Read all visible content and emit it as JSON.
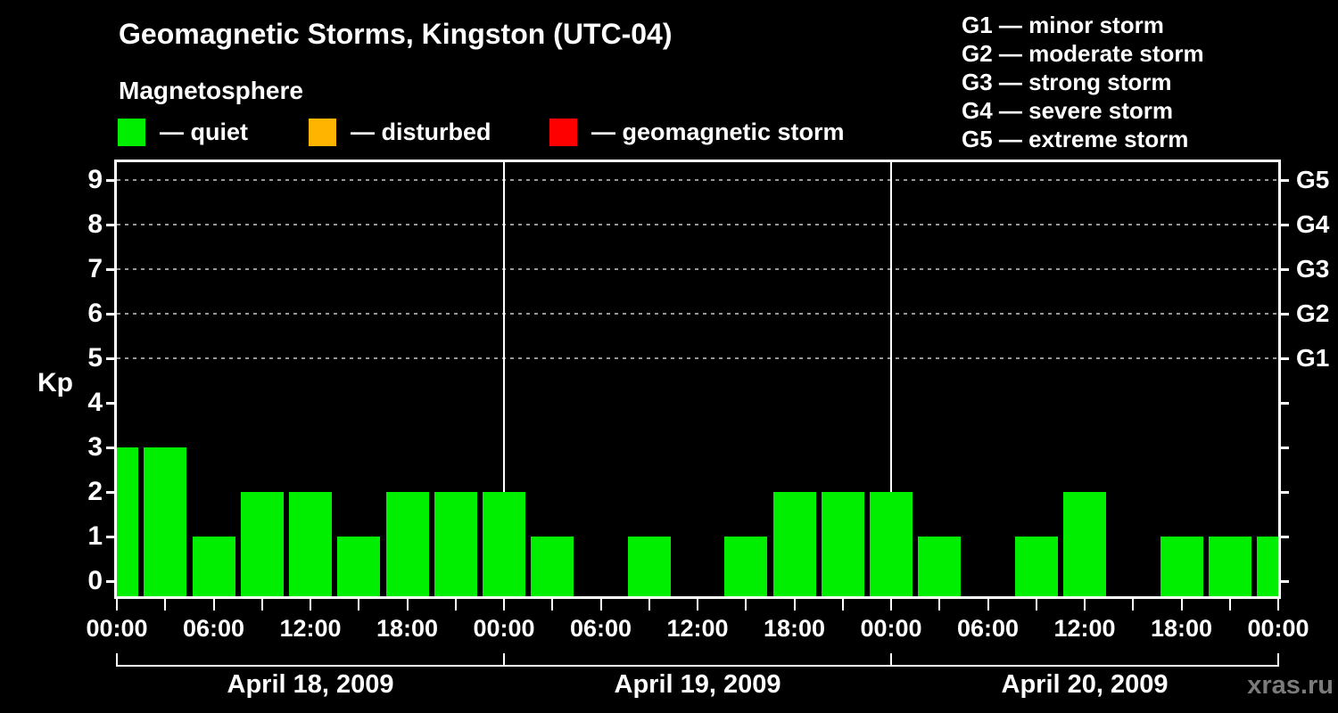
{
  "header": {
    "title": "Geomagnetic Storms, Kingston (UTC-04)",
    "subtitle": "Magnetosphere"
  },
  "legend": {
    "items": [
      {
        "name": "quiet",
        "swatch_color": "#00ee00",
        "label": "— quiet"
      },
      {
        "name": "disturbed",
        "swatch_color": "#ffb400",
        "label": "— disturbed"
      },
      {
        "name": "geomagnetic-storm",
        "swatch_color": "#ff0000",
        "label": "— geomagnetic storm"
      }
    ]
  },
  "g_legend": {
    "items": [
      "G1 — minor storm",
      "G2 — moderate storm",
      "G3 — strong storm",
      "G4 — severe storm",
      "G5 — extreme storm"
    ]
  },
  "chart_data": {
    "type": "bar",
    "title": "Geomagnetic Storms, Kingston (UTC-04)",
    "ylabel": "Kp",
    "ylim": [
      -0.35,
      9.4
    ],
    "y_ticks": [
      0,
      1,
      2,
      3,
      4,
      5,
      6,
      7,
      8,
      9
    ],
    "grid_kp_levels": [
      5,
      6,
      7,
      8,
      9
    ],
    "grid_style": "dashed",
    "g_labels": [
      {
        "kp": 5,
        "label": "G1"
      },
      {
        "kp": 6,
        "label": "G2"
      },
      {
        "kp": 7,
        "label": "G3"
      },
      {
        "kp": 8,
        "label": "G4"
      },
      {
        "kp": 9,
        "label": "G5"
      }
    ],
    "hours_per_bar": 3,
    "bars_per_day": 8,
    "x_axis_time_labels": [
      "00:00",
      "06:00",
      "12:00",
      "18:00",
      "00:00",
      "06:00",
      "12:00",
      "18:00",
      "00:00",
      "06:00",
      "12:00",
      "18:00",
      "00:00"
    ],
    "days": [
      {
        "date": "April 18, 2009",
        "kp_values": [
          3,
          3,
          1,
          2,
          2,
          1,
          2,
          2
        ]
      },
      {
        "date": "April 19, 2009",
        "kp_values": [
          2,
          1,
          0,
          1,
          0,
          1,
          2,
          2
        ]
      },
      {
        "date": "April 20, 2009",
        "kp_values": [
          2,
          1,
          0,
          1,
          2,
          0,
          1,
          1
        ]
      }
    ],
    "trailing_bar_kp": 1,
    "bar_color_quiet": "#00ee00",
    "legend_position": "top"
  },
  "footer": {
    "watermark": "xras.ru"
  }
}
